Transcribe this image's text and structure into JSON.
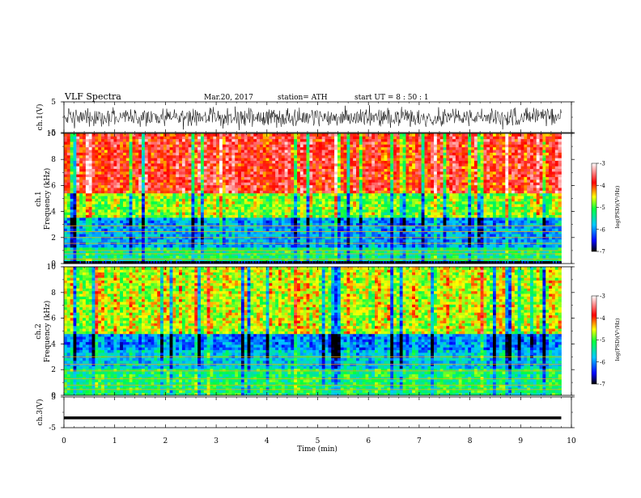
{
  "header": {
    "title": "VLF  Spectra",
    "date": "Mar.20, 2017",
    "station": "station= ATH",
    "start": "start  UT  =    8  : 50 : 1"
  },
  "chart_data": [
    {
      "type": "line",
      "panel": "ch1-waveform",
      "ylabel": "ch.1(V)",
      "ylim": [
        -5,
        5
      ],
      "yticks": [
        "5",
        "-5"
      ],
      "xlim": [
        0,
        10
      ],
      "series_color": "#000000"
    },
    {
      "type": "heatmap",
      "panel": "ch1-spectrogram",
      "ylabel": "ch.1\nFrequency (kHz)",
      "ylabel_lines": [
        "ch.1",
        "Frequency (kHz)"
      ],
      "ylim": [
        0,
        10
      ],
      "yticks": [
        "0",
        "2",
        "4",
        "6",
        "8",
        "10"
      ],
      "xlim": [
        0,
        10
      ],
      "data_end_min": 9.8,
      "colorbar": {
        "label": "log(PSD)(V²/Hz)",
        "range": [
          -7,
          -3
        ],
        "ticks": [
          "-3",
          "-4",
          "-5",
          "-6",
          "-7"
        ]
      },
      "bands_khz": [
        {
          "from": 0,
          "to": 0.3,
          "level": -6.7
        },
        {
          "from": 0.3,
          "to": 1.2,
          "level": -5.3
        },
        {
          "from": 1.2,
          "to": 3.5,
          "level": -5.9
        },
        {
          "from": 3.5,
          "to": 5.5,
          "level": -4.8
        },
        {
          "from": 5.5,
          "to": 10,
          "level": -3.8
        }
      ]
    },
    {
      "type": "heatmap",
      "panel": "ch2-spectrogram",
      "ylabel": "ch.2\nFrequency (kHz)",
      "ylabel_lines": [
        "ch.2",
        "Frequency (kHz)"
      ],
      "ylim": [
        0,
        10
      ],
      "yticks": [
        "0",
        "2",
        "4",
        "6",
        "8",
        "10"
      ],
      "xlim": [
        0,
        10
      ],
      "data_end_min": 9.8,
      "colorbar": {
        "label": "log(PSD)(V²/Hz)",
        "range": [
          -7,
          -3
        ],
        "ticks": [
          "-3",
          "-4",
          "-5",
          "-6",
          "-7"
        ]
      },
      "bands_khz": [
        {
          "from": 0,
          "to": 2,
          "level": -5.2
        },
        {
          "from": 2,
          "to": 3.6,
          "level": -5.7
        },
        {
          "from": 3.6,
          "to": 4.7,
          "level": -6.0
        },
        {
          "from": 4.7,
          "to": 10,
          "level": -4.6
        }
      ]
    },
    {
      "type": "line",
      "panel": "ch3-waveform",
      "ylabel": "ch.3(V)",
      "ylim": [
        -5,
        5
      ],
      "yticks": [
        "5",
        "-5"
      ],
      "xlim": [
        0,
        10
      ],
      "constant_value": -1.8
    }
  ],
  "xaxis": {
    "label": "Time (min)",
    "ticks": [
      "0",
      "1",
      "2",
      "3",
      "4",
      "5",
      "6",
      "7",
      "8",
      "9",
      "10"
    ]
  }
}
